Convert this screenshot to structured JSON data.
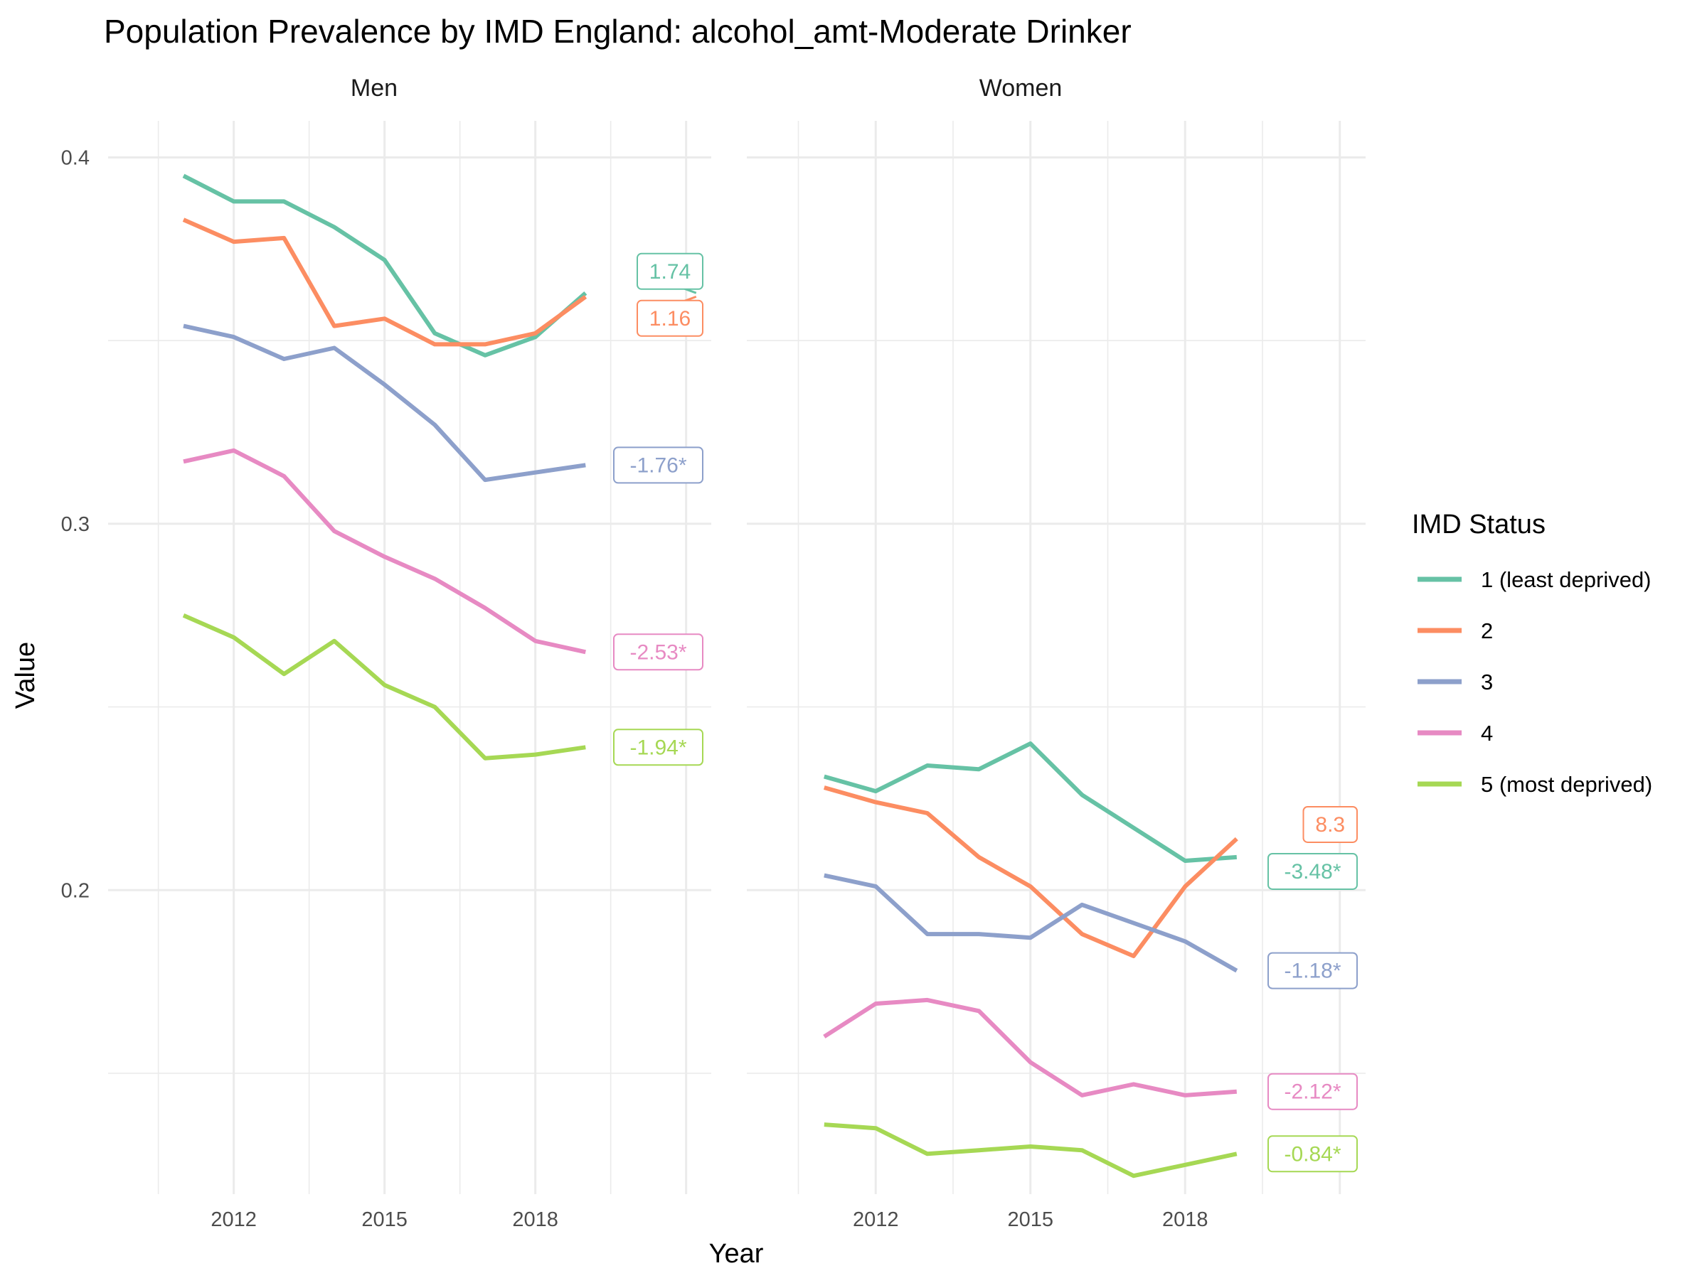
{
  "chart_data": {
    "type": "line",
    "title": "Population Prevalence by IMD England: alcohol_amt-Moderate Drinker",
    "xlabel": "Year",
    "ylabel": "Value",
    "x_ticks": [
      2012,
      2015,
      2018
    ],
    "y_ticks": [
      0.2,
      0.3,
      0.4
    ],
    "y_tick_labels": [
      "0.2",
      "0.3",
      "0.4"
    ],
    "xlim": [
      2009.5,
      2021.5
    ],
    "ylim": [
      0.117,
      0.41
    ],
    "legend": {
      "title": "IMD Status",
      "position": "right",
      "items": [
        "1 (least deprived)",
        "2",
        "3",
        "4",
        "5 (most deprived)"
      ]
    },
    "colors": {
      "1 (least deprived)": "#66c2a5",
      "2": "#fc8d62",
      "3": "#8da0cb",
      "4": "#e78ac3",
      "5 (most deprived)": "#a6d854"
    },
    "panels": [
      {
        "name": "Men",
        "x": [
          2011,
          2012,
          2013,
          2014,
          2015,
          2016,
          2017,
          2018,
          2019
        ],
        "series": [
          {
            "name": "1 (least deprived)",
            "values": [
              0.395,
              0.388,
              0.388,
              0.381,
              0.372,
              0.352,
              0.346,
              0.351,
              0.363
            ],
            "label": "1.74"
          },
          {
            "name": "2",
            "values": [
              0.383,
              0.377,
              0.378,
              0.354,
              0.356,
              0.349,
              0.349,
              0.352,
              0.362
            ],
            "label": "1.16"
          },
          {
            "name": "3",
            "values": [
              0.354,
              0.351,
              0.345,
              0.348,
              0.338,
              0.327,
              0.312,
              0.314,
              0.316
            ],
            "label": "-1.76*"
          },
          {
            "name": "4",
            "values": [
              0.317,
              0.32,
              0.313,
              0.298,
              0.291,
              0.285,
              0.277,
              0.268,
              0.265
            ],
            "label": "-2.53*"
          },
          {
            "name": "5 (most deprived)",
            "values": [
              0.275,
              0.269,
              0.259,
              0.268,
              0.256,
              0.25,
              0.236,
              0.237,
              0.239
            ],
            "label": "-1.94*"
          }
        ]
      },
      {
        "name": "Women",
        "x": [
          2011,
          2012,
          2013,
          2014,
          2015,
          2016,
          2017,
          2018,
          2019
        ],
        "series": [
          {
            "name": "1 (least deprived)",
            "values": [
              0.231,
              0.227,
              0.234,
              0.233,
              0.24,
              0.226,
              0.217,
              0.208,
              0.209
            ],
            "label": "-3.48*"
          },
          {
            "name": "2",
            "values": [
              0.228,
              0.224,
              0.221,
              0.209,
              0.201,
              0.188,
              0.182,
              0.201,
              0.214
            ],
            "label": "8.3"
          },
          {
            "name": "3",
            "values": [
              0.204,
              0.201,
              0.188,
              0.188,
              0.187,
              0.196,
              0.191,
              0.186,
              0.178
            ],
            "label": "-1.18*"
          },
          {
            "name": "4",
            "values": [
              0.16,
              0.169,
              0.17,
              0.167,
              0.153,
              0.144,
              0.147,
              0.144,
              0.145
            ],
            "label": "-2.12*"
          },
          {
            "name": "5 (most deprived)",
            "values": [
              0.136,
              0.135,
              0.128,
              0.129,
              0.13,
              0.129,
              0.122,
              0.125,
              0.128
            ],
            "label": "-0.84*"
          }
        ]
      }
    ]
  }
}
